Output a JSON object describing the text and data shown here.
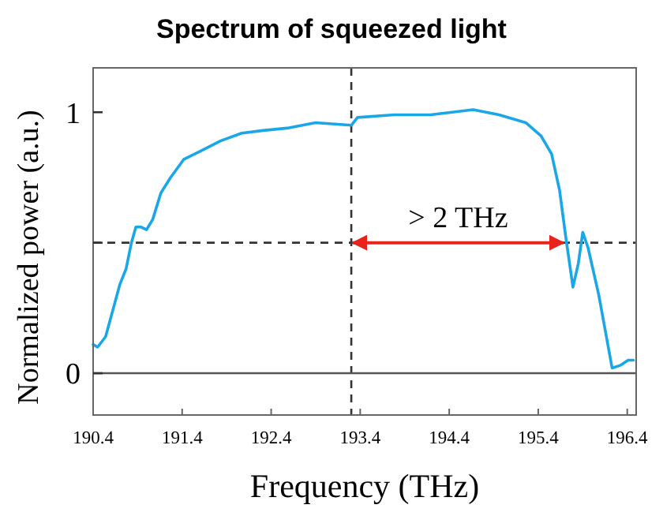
{
  "chart_data": {
    "type": "line",
    "title": "Spectrum of squeezed light",
    "xlabel": "Frequency  (THz)",
    "ylabel": "Normalized power (a.u.)",
    "x": [
      190.4,
      190.45,
      190.54,
      190.62,
      190.7,
      190.77,
      190.83,
      190.88,
      190.94,
      191.0,
      191.07,
      191.16,
      191.27,
      191.42,
      191.6,
      191.83,
      192.07,
      192.31,
      192.6,
      192.9,
      193.3,
      193.37,
      193.78,
      194.19,
      194.67,
      194.96,
      195.26,
      195.43,
      195.55,
      195.64,
      195.71,
      195.79,
      195.85,
      195.9,
      195.96,
      196.08,
      196.23,
      196.32,
      196.41,
      196.47
    ],
    "series": [
      {
        "color": "#1aa7e8",
        "values": [
          0.11,
          0.1,
          0.14,
          0.24,
          0.34,
          0.4,
          0.5,
          0.56,
          0.56,
          0.55,
          0.59,
          0.69,
          0.75,
          0.82,
          0.85,
          0.89,
          0.92,
          0.93,
          0.94,
          0.96,
          0.95,
          0.98,
          0.99,
          0.99,
          1.01,
          0.99,
          0.96,
          0.91,
          0.84,
          0.7,
          0.52,
          0.33,
          0.42,
          0.54,
          0.48,
          0.3,
          0.02,
          0.03,
          0.05,
          0.05
        ]
      }
    ],
    "xlim": [
      190.4,
      196.5
    ],
    "xticks": [
      {
        "value": 190.4,
        "label": "190.4"
      },
      {
        "value": 191.4,
        "label": "191.4"
      },
      {
        "value": 192.4,
        "label": "192.4"
      },
      {
        "value": 193.4,
        "label": "193.4"
      },
      {
        "value": 194.4,
        "label": "194.4"
      },
      {
        "value": 195.4,
        "label": "195.4"
      },
      {
        "value": 196.4,
        "label": "196.4"
      }
    ],
    "ylim": [
      -0.16,
      1.17
    ],
    "yticks": [
      0,
      {
        "value": 0.5,
        "label": null
      },
      1
    ],
    "ref_lines": [
      {
        "axis": "y",
        "value": 0.5,
        "line_style": "dashed",
        "color": "#333333"
      },
      {
        "axis": "x",
        "value": 193.3,
        "line_style": "dashed",
        "color": "#333333"
      },
      {
        "axis": "y",
        "value": 0,
        "line_style": "solid",
        "color": "#555555"
      }
    ],
    "annotations": [
      {
        "text": "> 2 THz",
        "x": 194.5,
        "y": 0.5
      }
    ],
    "marker": "none",
    "line_style": "solid"
  }
}
